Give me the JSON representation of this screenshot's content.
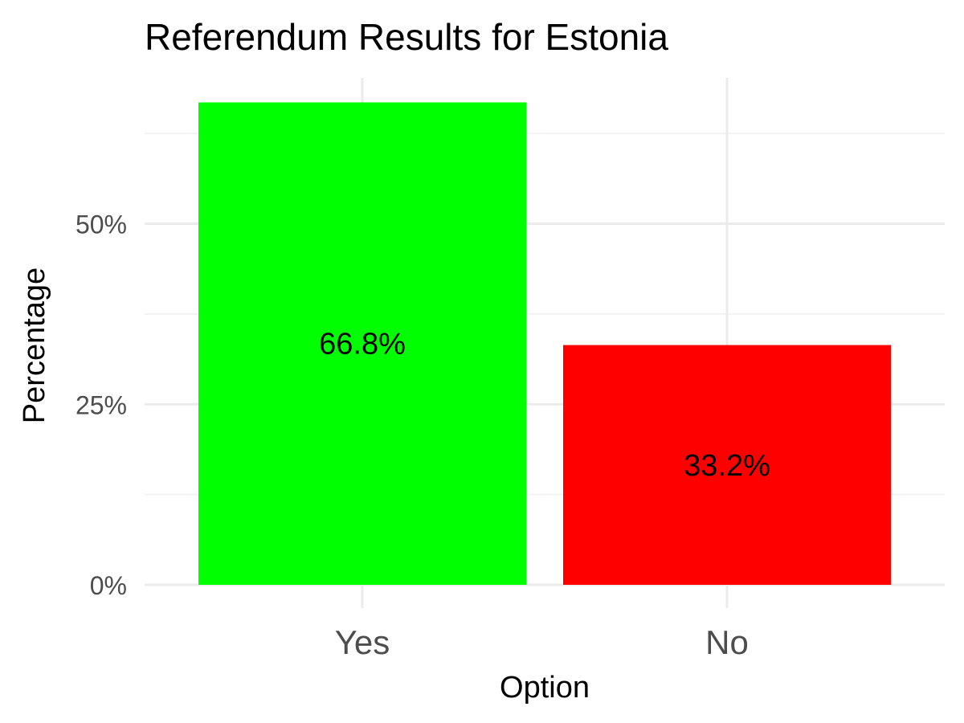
{
  "chart_data": {
    "type": "bar",
    "title": "Referendum Results for Estonia",
    "xlabel": "Option",
    "ylabel": "Percentage",
    "categories": [
      "Yes",
      "No"
    ],
    "values": [
      66.8,
      33.2
    ],
    "value_labels": [
      "66.8%",
      "33.2%"
    ],
    "colors": [
      "#00ff00",
      "#ff0000"
    ],
    "ylim": [
      0,
      70
    ],
    "y_ticks": [
      0,
      25,
      50
    ],
    "y_tick_labels": [
      "0%",
      "25%",
      "50%"
    ],
    "grid": true,
    "legend": "none"
  }
}
